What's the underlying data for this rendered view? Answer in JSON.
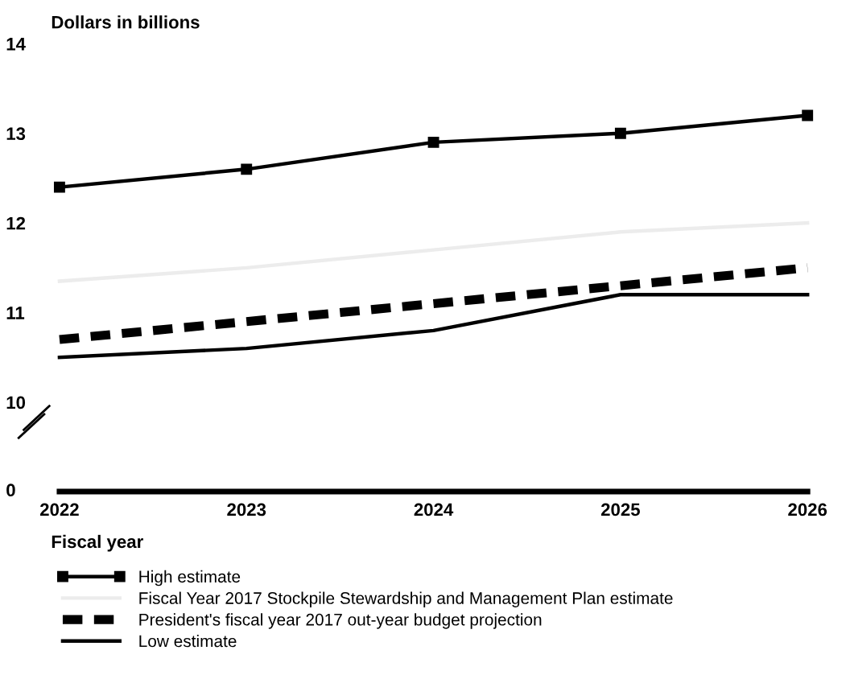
{
  "chart_data": {
    "type": "line",
    "ylabel": "Dollars in billions",
    "xlabel": "Fiscal year",
    "categories": [
      "2022",
      "2023",
      "2024",
      "2025",
      "2026"
    ],
    "series": [
      {
        "name": "High estimate",
        "color": "#000000",
        "values": [
          12.4,
          12.6,
          12.9,
          13.0,
          13.2
        ],
        "marker": "square",
        "line_style": "solid"
      },
      {
        "name": "Fiscal Year 2017 Stockpile Stewardship and Management Plan estimate",
        "color": "#ececec",
        "values": [
          11.35,
          11.5,
          11.7,
          11.9,
          12.0
        ],
        "marker": "none",
        "line_style": "solid"
      },
      {
        "name": "President's fiscal year 2017 out-year budget projection",
        "color": "#000000",
        "values": [
          10.7,
          10.9,
          11.1,
          11.3,
          11.5
        ],
        "marker": "none",
        "line_style": "dashed"
      },
      {
        "name": "Low estimate",
        "color": "#000000",
        "values": [
          10.5,
          10.6,
          10.8,
          11.2,
          11.2
        ],
        "marker": "none",
        "line_style": "solid"
      }
    ],
    "annotations": [
      "0"
    ],
    "ylim": [
      10,
      14
    ],
    "yticks": [
      10,
      11,
      12,
      13,
      14
    ],
    "grid": false,
    "legend": "bottom"
  }
}
